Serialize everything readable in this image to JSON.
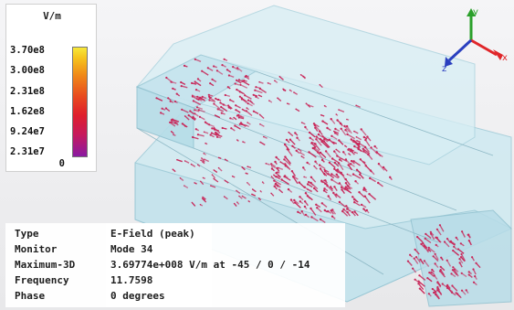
{
  "legend": {
    "unit": "V/m",
    "ticks": [
      "3.70e8",
      "3.00e8",
      "2.31e8",
      "1.62e8",
      "9.24e7",
      "2.31e7"
    ],
    "zero": "0",
    "gradient_colors": [
      "#f7e83a",
      "#f08a18",
      "#e84a1f",
      "#df1f2c",
      "#c61a5c",
      "#8a1aa3"
    ]
  },
  "info": {
    "rows": [
      {
        "label": "Type",
        "value": "E-Field (peak)"
      },
      {
        "label": "Monitor",
        "value": "Mode 34"
      },
      {
        "label": "Maximum-3D",
        "value": "3.69774e+008 V/m at -45 / 0 / -14"
      },
      {
        "label": "Frequency",
        "value": "11.7598"
      },
      {
        "label": "Phase",
        "value": "0 degrees"
      }
    ]
  },
  "axes": {
    "x_label": "x",
    "y_label": "y",
    "z_label": "z",
    "x_color": "#e0262a",
    "y_color": "#2aa02a",
    "z_color": "#2a3fbf"
  },
  "scene": {
    "structure_color": "#bfe3ec",
    "arrow_color": "#c8285a"
  }
}
